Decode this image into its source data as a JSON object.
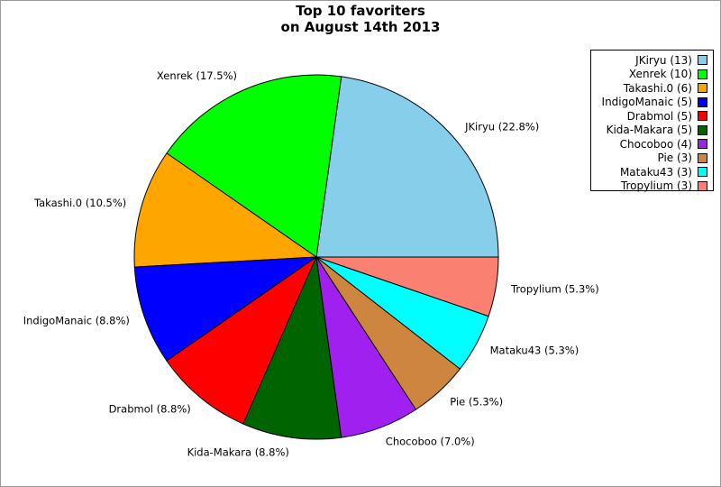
{
  "chart_data": {
    "type": "pie",
    "title": [
      "Top 10 favoriters",
      "on August 14th 2013"
    ],
    "slices": [
      {
        "label": "JKiryu",
        "value": 13,
        "percent_label": "JKiryu (22.8%)",
        "legend_label": "JKiryu (13)",
        "color": "#87ceeb"
      },
      {
        "label": "Xenrek",
        "value": 10,
        "percent_label": "Xenrek (17.5%)",
        "legend_label": "Xenrek (10)",
        "color": "#00ff00"
      },
      {
        "label": "Takashi.0",
        "value": 6,
        "percent_label": "Takashi.0 (10.5%)",
        "legend_label": "Takashi.0 (6)",
        "color": "#ffa500"
      },
      {
        "label": "IndigoManaic",
        "value": 5,
        "percent_label": "IndigoManaic (8.8%)",
        "legend_label": "IndigoManaic (5)",
        "color": "#0000ff"
      },
      {
        "label": "Drabmol",
        "value": 5,
        "percent_label": "Drabmol (8.8%)",
        "legend_label": "Drabmol (5)",
        "color": "#ff0000"
      },
      {
        "label": "Kida-Makara",
        "value": 5,
        "percent_label": "Kida-Makara (8.8%)",
        "legend_label": "Kida-Makara (5)",
        "color": "#006400"
      },
      {
        "label": "Chocoboo",
        "value": 4,
        "percent_label": "Chocoboo (7.0%)",
        "legend_label": "Chocoboo (4)",
        "color": "#a020f0"
      },
      {
        "label": "Pie",
        "value": 3,
        "percent_label": "Pie (5.3%)",
        "legend_label": "Pie (3)",
        "color": "#cd853f"
      },
      {
        "label": "Mataku43",
        "value": 3,
        "percent_label": "Mataku43 (5.3%)",
        "legend_label": "Mataku43 (3)",
        "color": "#00ffff"
      },
      {
        "label": "Tropylium",
        "value": 3,
        "percent_label": "Tropylium (5.3%)",
        "legend_label": "Tropylium (3)",
        "color": "#fa8072"
      }
    ],
    "legend_position": "top-right"
  }
}
